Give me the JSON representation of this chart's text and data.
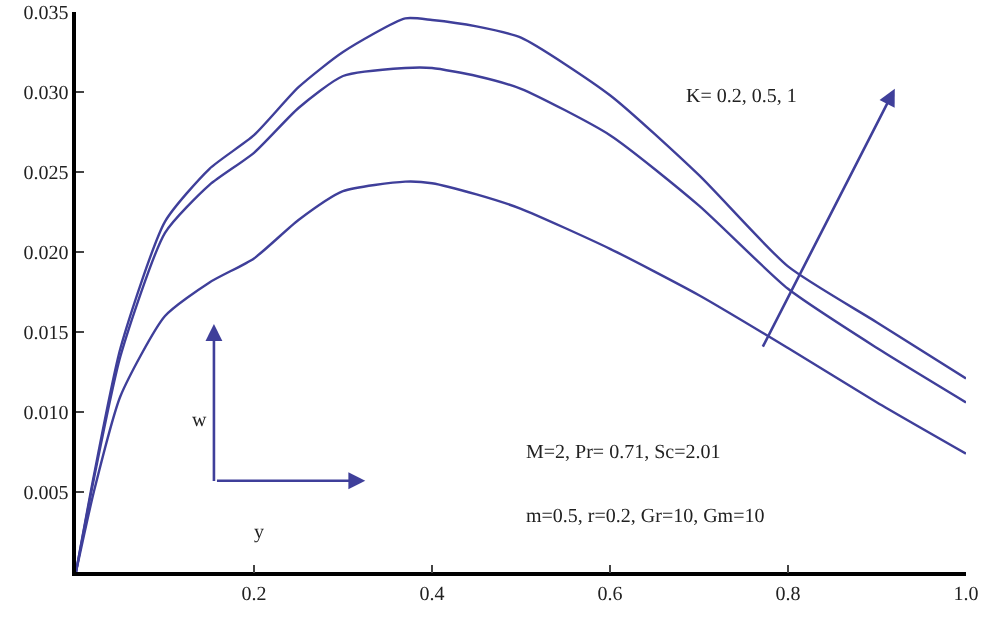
{
  "chart_data": {
    "type": "line",
    "xlabel": "y",
    "ylabel": "w",
    "x": [
      0,
      0.02,
      0.05,
      0.1,
      0.15,
      0.2,
      0.25,
      0.3,
      0.37,
      0.4,
      0.45,
      0.5,
      0.6,
      0.7,
      0.8,
      0.9,
      1.0
    ],
    "series": [
      {
        "color": "#3f3f9a",
        "values": [
          0,
          0.006,
          0.014,
          0.0219,
          0.0252,
          0.0273,
          0.0303,
          0.0325,
          0.0346,
          0.0345,
          0.0341,
          0.0334,
          0.0298,
          0.0248,
          0.0191,
          0.0156,
          0.0121
        ]
      },
      {
        "color": "#3f3f9a",
        "values": [
          0,
          0.0058,
          0.0135,
          0.0212,
          0.0242,
          0.0262,
          0.029,
          0.031,
          0.0315,
          0.0315,
          0.031,
          0.0302,
          0.0273,
          0.0229,
          0.0177,
          0.014,
          0.0106
        ]
      },
      {
        "color": "#3f3f9a",
        "values": [
          0,
          0.005,
          0.011,
          0.016,
          0.0181,
          0.0196,
          0.022,
          0.0238,
          0.0244,
          0.0243,
          0.0236,
          0.0227,
          0.0202,
          0.0173,
          0.014,
          0.0106,
          0.0074
        ]
      }
    ],
    "xlim": [
      0,
      1.0
    ],
    "ylim": [
      0,
      0.035
    ],
    "xticks": [
      0.2,
      0.4,
      0.6,
      0.8,
      {
        "value": 1.0,
        "label": "1.0"
      }
    ],
    "yticks": [
      0.005,
      {
        "value": 0.01,
        "label": "0.010"
      },
      0.015,
      {
        "value": 0.02,
        "label": "0.020"
      },
      0.025,
      {
        "value": 0.03,
        "label": "0.030"
      },
      0.035
    ],
    "annotations": [
      "K= 0.2, 0.5, 1",
      "M=2, Pr= 0.71, Sc=2.01",
      "m=0.5, r=0.2, Gr=10, Gm=10"
    ],
    "grid": false,
    "legend": false,
    "marker": "none",
    "line_style": "solid"
  }
}
